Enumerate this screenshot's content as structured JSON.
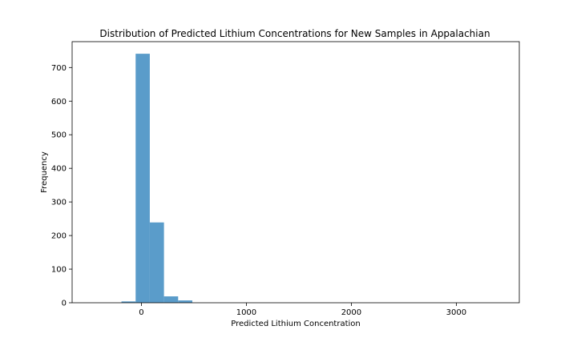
{
  "chart_data": {
    "type": "bar",
    "title": "Distribution of Predicted Lithium Concentrations for New Samples in Appalachian",
    "xlabel": "Predicted Lithium Concentration",
    "ylabel": "Frequency",
    "xlim": [
      -660,
      3600
    ],
    "ylim": [
      0,
      777
    ],
    "xticks": [
      0,
      1000,
      2000,
      3000
    ],
    "yticks": [
      0,
      100,
      200,
      300,
      400,
      500,
      600,
      700
    ],
    "bar_color": "#5a9cca",
    "grid": false,
    "bins": [
      {
        "x0": -190,
        "x1": -55,
        "count": 4
      },
      {
        "x0": -55,
        "x1": 80,
        "count": 741
      },
      {
        "x0": 80,
        "x1": 215,
        "count": 239
      },
      {
        "x0": 215,
        "x1": 350,
        "count": 19
      },
      {
        "x0": 350,
        "x1": 485,
        "count": 7
      }
    ]
  }
}
